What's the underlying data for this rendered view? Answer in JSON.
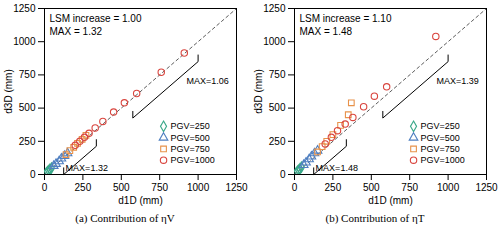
{
  "chart_data": [
    {
      "type": "scatter",
      "title": "(a) Contribution of ηV",
      "xlabel": "d1D (mm)",
      "ylabel": "d3D (mm)",
      "xlim": [
        0,
        1250
      ],
      "ylim": [
        0,
        1250
      ],
      "xticks": [
        0,
        250,
        500,
        750,
        1000,
        1250
      ],
      "yticks": [
        0,
        250,
        500,
        750,
        1000,
        1250
      ],
      "grid": false,
      "legend": "lower right",
      "annotations": [
        "LSM increase = 1.00",
        "MAX = 1.32",
        "MAX=1.06",
        "MAX=1.32"
      ],
      "series": [
        {
          "name": "PGV=250",
          "color": "#3aa88a",
          "marker": "diamond",
          "x": [
            12,
            20,
            28,
            35,
            45
          ],
          "values": [
            12,
            22,
            30,
            38,
            48
          ]
        },
        {
          "name": "PGV=500",
          "color": "#4f7fc0",
          "marker": "triangle",
          "x": [
            60,
            75,
            95,
            110,
            130,
            150
          ],
          "values": [
            65,
            80,
            100,
            120,
            140,
            160
          ]
        },
        {
          "name": "PGV=750",
          "color": "#e8924a",
          "marker": "square",
          "x": [
            140,
            165,
            190,
            215,
            245,
            270
          ],
          "values": [
            150,
            180,
            205,
            235,
            265,
            295
          ]
        },
        {
          "name": "PGV=1000",
          "color": "#d9453e",
          "marker": "circle",
          "x": [
            200,
            230,
            260,
            290,
            330,
            380,
            450,
            520,
            600,
            760,
            910
          ],
          "values": [
            220,
            250,
            280,
            310,
            350,
            400,
            470,
            540,
            610,
            770,
            915
          ]
        }
      ]
    },
    {
      "type": "scatter",
      "title": "(b) Contribution of ηT",
      "xlabel": "d1D (mm)",
      "ylabel": "d3D (mm)",
      "xlim": [
        0,
        1250
      ],
      "ylim": [
        0,
        1250
      ],
      "xticks": [
        0,
        250,
        500,
        750,
        1000,
        1250
      ],
      "yticks": [
        0,
        250,
        500,
        750,
        1000,
        1250
      ],
      "grid": false,
      "legend": "lower right",
      "annotations": [
        "LSM increase = 1.10",
        "MAX = 1.48",
        "MAX=1.39",
        "MAX=1.48"
      ],
      "series": [
        {
          "name": "PGV=250",
          "color": "#3aa88a",
          "marker": "diamond",
          "x": [
            12,
            20,
            28,
            35,
            45
          ],
          "values": [
            14,
            25,
            33,
            42,
            55
          ]
        },
        {
          "name": "PGV=500",
          "color": "#4f7fc0",
          "marker": "triangle",
          "x": [
            60,
            75,
            95,
            110,
            130,
            150
          ],
          "values": [
            72,
            90,
            115,
            135,
            160,
            180
          ]
        },
        {
          "name": "PGV=750",
          "color": "#e8924a",
          "marker": "square",
          "x": [
            150,
            180,
            210,
            250,
            300,
            350,
            370
          ],
          "values": [
            170,
            210,
            250,
            300,
            370,
            450,
            540
          ]
        },
        {
          "name": "PGV=1000",
          "color": "#d9453e",
          "marker": "circle",
          "x": [
            200,
            240,
            280,
            330,
            380,
            450,
            520,
            600,
            920
          ],
          "values": [
            230,
            280,
            330,
            380,
            430,
            510,
            590,
            660,
            1040
          ]
        }
      ]
    }
  ]
}
